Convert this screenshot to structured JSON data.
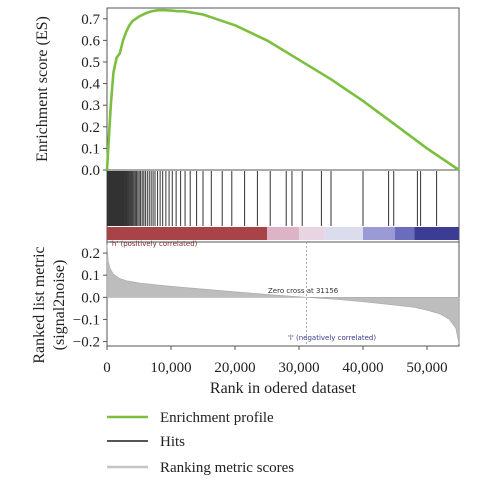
{
  "chart_data": {
    "type": "line",
    "es_panel": {
      "ylabel": "Enrichment score (ES)",
      "ylim": [
        0,
        0.75
      ],
      "yticks": [
        "0.7",
        "0.6",
        "0.5",
        "0.4",
        "0.3",
        "0.2",
        "0.1",
        "0.0"
      ],
      "ytick_values": [
        0.7,
        0.6,
        0.5,
        0.4,
        0.3,
        0.2,
        0.1,
        0.0
      ],
      "series": [
        {
          "name": "Enrichment profile",
          "color": "#7cbf3f",
          "x": [
            0,
            300,
            600,
            1000,
            1500,
            2000,
            2500,
            3000,
            3500,
            4000,
            5000,
            6000,
            7000,
            8000,
            9000,
            10000,
            11000,
            12000,
            13000,
            15000,
            17000,
            20000,
            25000,
            30000,
            35000,
            40000,
            45000,
            50000,
            55000
          ],
          "y": [
            0.0,
            0.15,
            0.3,
            0.45,
            0.52,
            0.54,
            0.6,
            0.64,
            0.67,
            0.69,
            0.71,
            0.725,
            0.735,
            0.74,
            0.74,
            0.738,
            0.735,
            0.735,
            0.73,
            0.72,
            0.7,
            0.67,
            0.6,
            0.51,
            0.42,
            0.32,
            0.21,
            0.1,
            0.0
          ]
        }
      ]
    },
    "hits_panel": {
      "name": "Hits",
      "color": "#333333",
      "hit_ranks": [
        80,
        150,
        220,
        300,
        380,
        450,
        520,
        600,
        680,
        760,
        850,
        930,
        1000,
        1080,
        1150,
        1230,
        1320,
        1400,
        1480,
        1560,
        1650,
        1730,
        1820,
        1900,
        1990,
        2080,
        2170,
        2260,
        2350,
        2450,
        2550,
        2650,
        2760,
        2870,
        2980,
        3100,
        3220,
        3350,
        3480,
        3620,
        3770,
        3920,
        4080,
        4250,
        4430,
        4620,
        4820,
        5030,
        5250,
        5500,
        5750,
        6000,
        6300,
        6600,
        6900,
        7200,
        7500,
        7900,
        8300,
        8700,
        9200,
        9700,
        10200,
        10800,
        11500,
        12200,
        13000,
        14000,
        15000,
        16300,
        18000,
        19500,
        21500,
        23500,
        25500,
        28000,
        28900,
        30500,
        33500,
        35000,
        40000,
        44000,
        44800,
        48500,
        49000,
        51500
      ]
    },
    "ranked_bar": {
      "left_label": "'h' (positively correlated)",
      "right_label": "'l' (negatively correlated)",
      "segments": [
        {
          "from": 0,
          "to": 25000,
          "color": "#a84448"
        },
        {
          "from": 25000,
          "to": 30000,
          "color": "#dcb4c6"
        },
        {
          "from": 30000,
          "to": 34000,
          "color": "#e9d4e2"
        },
        {
          "from": 34000,
          "to": 40000,
          "color": "#dcdcef"
        },
        {
          "from": 40000,
          "to": 45000,
          "color": "#9a9ad4"
        },
        {
          "from": 45000,
          "to": 48000,
          "color": "#6c6cbf"
        },
        {
          "from": 48000,
          "to": 55000,
          "color": "#3c3c94"
        }
      ]
    },
    "metric_panel": {
      "ylabel_line1": "Ranked list metric",
      "ylabel_line2": "(signal2noise)",
      "ylim": [
        -0.22,
        0.25
      ],
      "yticks": [
        "0.2",
        "0.1",
        "0.0",
        "−0.1",
        "−0.2"
      ],
      "ytick_values": [
        0.2,
        0.1,
        0.0,
        -0.1,
        -0.2
      ],
      "zero_cross_label": "Zero cross at 31156",
      "zero_cross": 31156,
      "series": [
        {
          "name": "Ranking metric scores",
          "color": "#bdbdbd",
          "x": [
            0,
            200,
            500,
            1000,
            2000,
            3000,
            5000,
            8000,
            12000,
            16000,
            20000,
            25000,
            31156,
            36000,
            40000,
            44000,
            48000,
            50000,
            52000,
            53500,
            54500,
            55000
          ],
          "y": [
            0.24,
            0.16,
            0.13,
            0.105,
            0.085,
            0.075,
            0.065,
            0.055,
            0.045,
            0.035,
            0.025,
            0.013,
            0.0,
            -0.01,
            -0.02,
            -0.032,
            -0.045,
            -0.058,
            -0.075,
            -0.1,
            -0.14,
            -0.21
          ]
        }
      ]
    },
    "x_axis": {
      "xlabel": "Rank in odered dataset",
      "xlim": [
        0,
        55000
      ],
      "xticks": [
        "0",
        "10,000",
        "20,000",
        "30,000",
        "40,000",
        "50,000"
      ],
      "xtick_values": [
        0,
        10000,
        20000,
        30000,
        40000,
        50000
      ]
    },
    "legend": {
      "placement": "bottom-left",
      "items": [
        {
          "label": "Enrichment profile",
          "color": "#7cbf3f"
        },
        {
          "label": "Hits",
          "color": "#555555"
        },
        {
          "label": "Ranking metric scores",
          "color": "#c4c4c4"
        }
      ]
    }
  }
}
